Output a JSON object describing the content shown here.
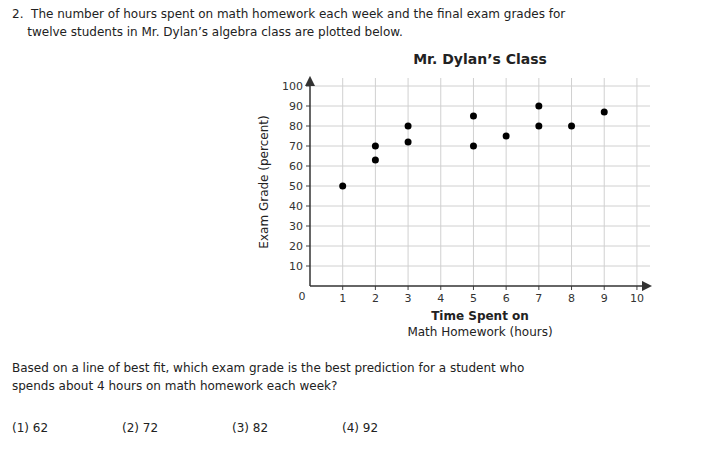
{
  "chart_data": {
    "type": "scatter",
    "title": "Mr. Dylan’s Class",
    "header_lines": [
      "2.  The number of hours spent on math homework each week and the final exam grades for",
      "    twelve students in Mr. Dylan’s algebra class are plotted below."
    ],
    "xlabel": [
      "Time Spent on",
      "Math Homework (hours)"
    ],
    "ylabel": "Exam Grade (percent)",
    "x": [
      1,
      2,
      2,
      3,
      3,
      5,
      5,
      6,
      7,
      7,
      8,
      9
    ],
    "values": [
      50,
      70,
      63,
      80,
      72,
      85,
      70,
      75,
      90,
      80,
      80,
      87
    ],
    "color": "#000000",
    "xlim": [
      0,
      10.4
    ],
    "ylim": [
      0,
      104
    ],
    "xticks": [
      1,
      2,
      3,
      4,
      5,
      6,
      7,
      8,
      9,
      10
    ],
    "yticks": [
      10,
      20,
      30,
      40,
      50,
      60,
      70,
      80,
      90,
      100
    ],
    "grid": true,
    "annotations": [
      {
        "text": "0",
        "x": 0,
        "y": 0
      }
    ],
    "question_lines": [
      "Based on a line of best fit, which exam grade is the best prediction for a student who",
      "spends about 4 hours on math homework each week?"
    ],
    "choices": [
      "(1) 62",
      "(2) 72",
      "(3) 82",
      "(4) 92"
    ]
  }
}
